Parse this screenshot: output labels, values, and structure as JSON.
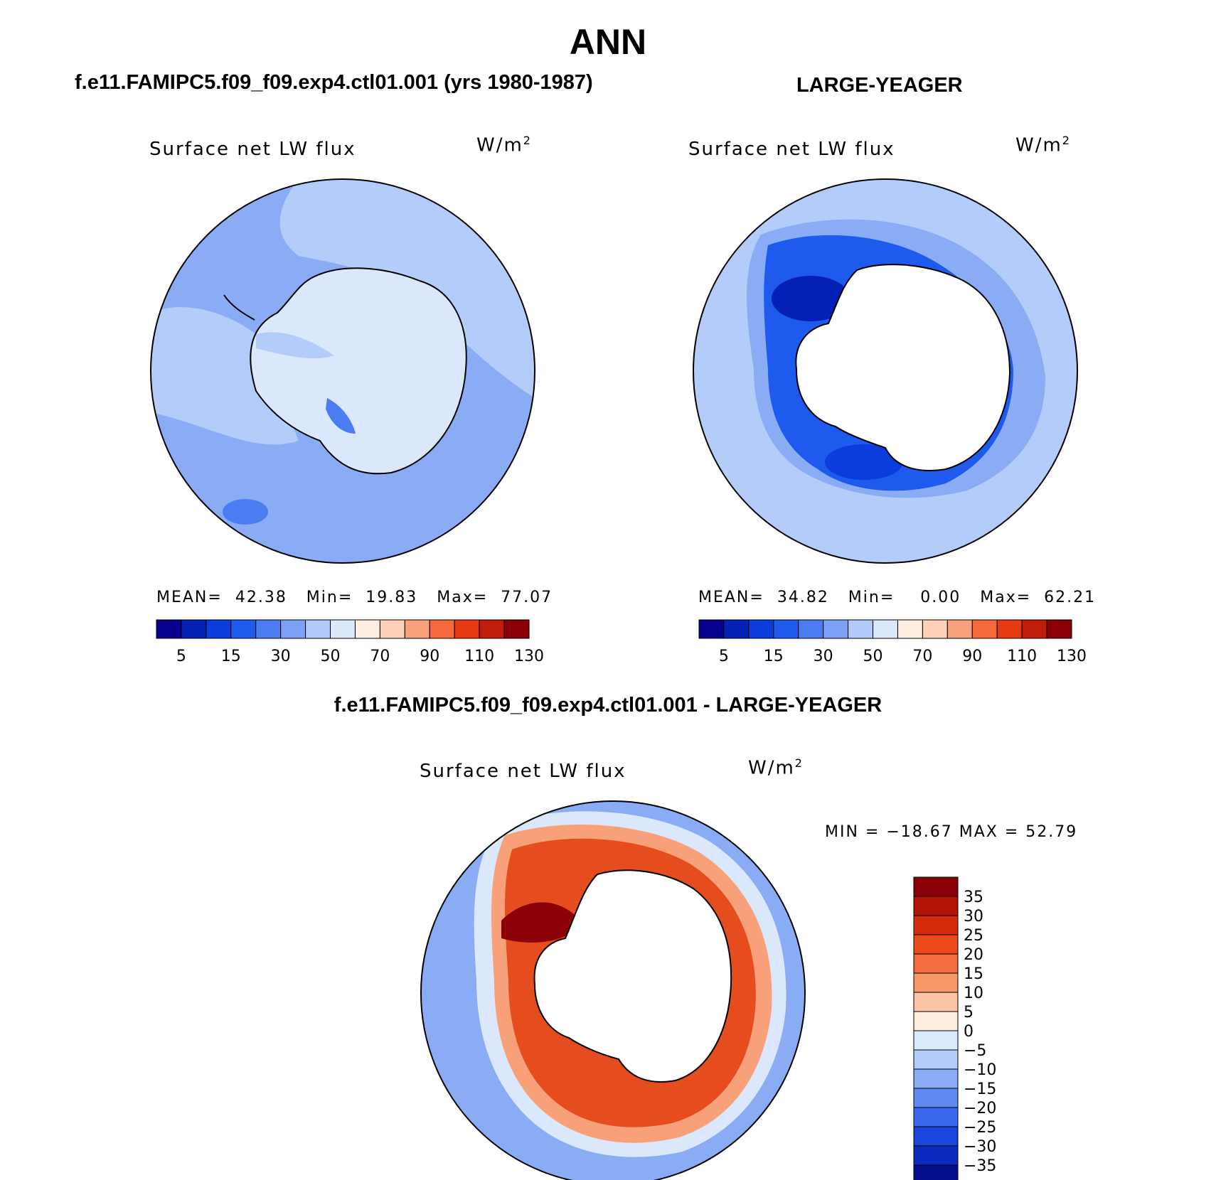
{
  "page_title": "ANN",
  "left_header": "f.e11.FAMIPC5.f09_f09.exp4.ctl01.001 (yrs 1980-1987)",
  "right_header": "LARGE-YEAGER",
  "diff_header": "f.e11.FAMIPC5.f09_f09.exp4.ctl01.001 - LARGE-YEAGER",
  "panels": {
    "left": {
      "title": "Surface net LW flux",
      "units": "W/m",
      "units_sup": "2",
      "stats": {
        "mean_label": "MEAN=",
        "mean": "42.38",
        "min_label": "Min=",
        "min": "19.83",
        "max_label": "Max=",
        "max": "77.07"
      }
    },
    "right": {
      "title": "Surface net LW flux",
      "units": "W/m",
      "units_sup": "2",
      "stats": {
        "mean_label": "MEAN=",
        "mean": "34.82",
        "min_label": "Min=",
        "min": "0.00",
        "max_label": "Max=",
        "max": "62.21"
      }
    },
    "diff": {
      "title": "Surface net LW flux",
      "units": "W/m",
      "units_sup": "2",
      "minmax": "MIN = −18.67  MAX =   52.79"
    }
  },
  "colorbar_abs": {
    "colors": [
      "#08008c",
      "#0520b4",
      "#0a3ddc",
      "#1e5aee",
      "#4b7cf2",
      "#7da0f7",
      "#b2c9fb",
      "#dbe8fc",
      "#fdeee0",
      "#fcd1b6",
      "#f9a17a",
      "#f5693b",
      "#e63a12",
      "#c21c0a",
      "#8b0006"
    ],
    "tick_labels": [
      "5",
      "15",
      "30",
      "50",
      "70",
      "90",
      "110",
      "130"
    ]
  },
  "colorbar_diff": {
    "colors": [
      "#8b0006",
      "#b51408",
      "#d62a0c",
      "#ed4a1c",
      "#f56c3e",
      "#f89868",
      "#fbc4a6",
      "#fdeee0",
      "#dceafd",
      "#b4ccfa",
      "#8aacf5",
      "#5f8af2",
      "#3a66ee",
      "#1a46de",
      "#0b2bbd",
      "#050f8e"
    ],
    "tick_labels": [
      "35",
      "30",
      "25",
      "20",
      "15",
      "10",
      "5",
      "0",
      "−5",
      "−10",
      "−15",
      "−20",
      "−25",
      "−30",
      "−35"
    ]
  },
  "colors": {
    "ocean_light": "#b4ccfa",
    "ocean_mid": "#8aacf5",
    "ocean_dark": "#4b7cf2",
    "ice_pale": "#dbe8fc",
    "land_white": "#ffffff",
    "red_dark": "#8b0006",
    "red_mid": "#e64d1e",
    "red_light": "#f8a07a"
  }
}
